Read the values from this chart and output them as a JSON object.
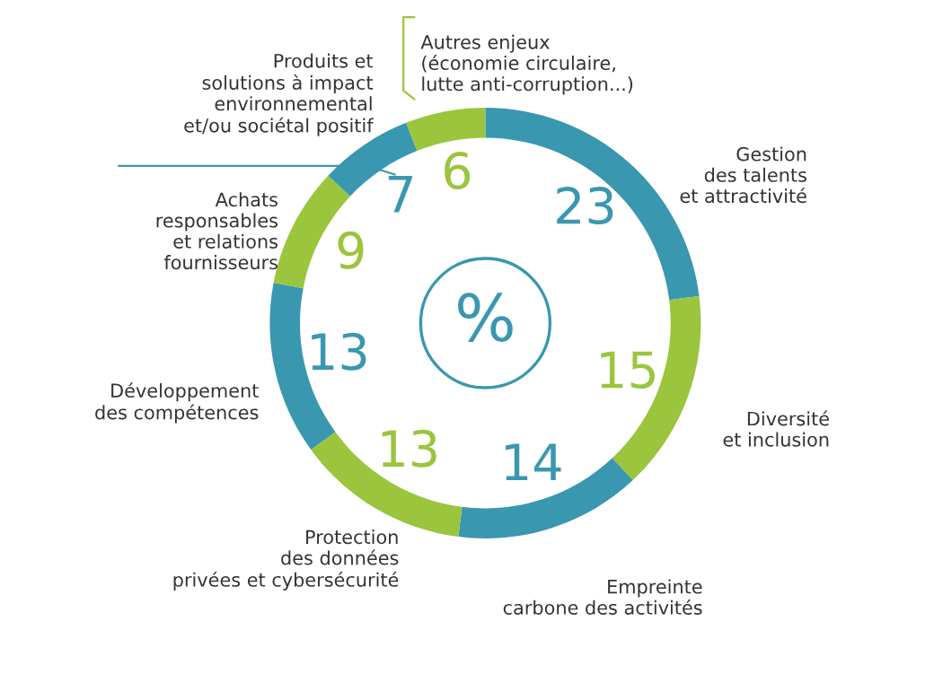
{
  "chart_data": {
    "type": "donut",
    "categories": [
      "Gestion\ndes talents\net attractivité",
      "Diversité\net inclusion",
      "Empreinte\ncarbone des activités",
      "Protection\ndes données\nprivées et cybersécurité",
      "Développement\ndes compétences",
      "Achats\nresponsables\net relations\nfournisseurs",
      "Produits et\nsolutions à impact\nenvironnemental\net/ou sociétal positif",
      "Autres enjeux\n(économie circulaire,\nlutte anti-corruption...)"
    ],
    "values": [
      23,
      15,
      14,
      13,
      13,
      9,
      7,
      6
    ],
    "colors": [
      "#3a97b0",
      "#9bc53d",
      "#3a97b0",
      "#9bc53d",
      "#3a97b0",
      "#9bc53d",
      "#3a97b0",
      "#9bc53d"
    ],
    "data_labels": true,
    "annotations": [
      "%"
    ]
  }
}
